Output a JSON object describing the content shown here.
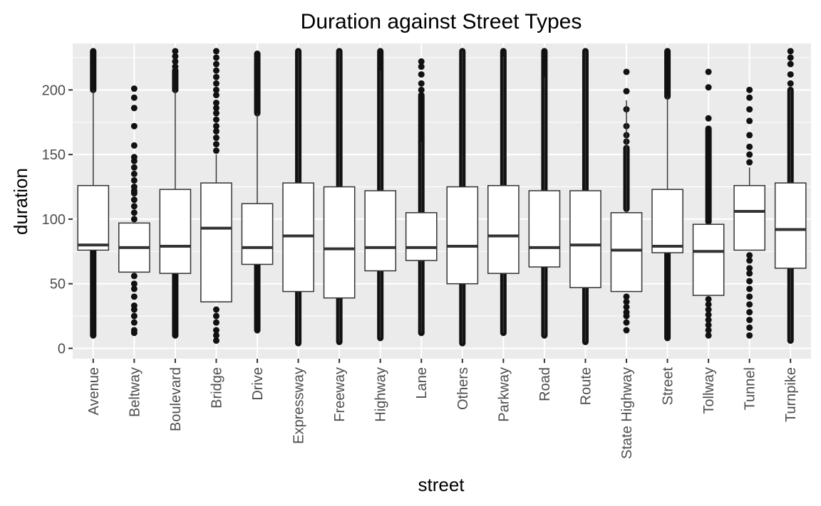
{
  "chart_data": {
    "type": "boxplot",
    "title": "Duration against Street Types",
    "xlabel": "street",
    "ylabel": "duration",
    "ylim": [
      -8,
      236
    ],
    "yticks": [
      0,
      50,
      100,
      150,
      200
    ],
    "grid": true,
    "legend": "none",
    "colors": {
      "panel": "#ebebeb",
      "grid": "#ffffff",
      "box_fill": "#ffffff",
      "box_line": "#333333",
      "outlier": "#111111",
      "tick_label": "#4d4d4d"
    },
    "categories": [
      "Avenue",
      "Beltway",
      "Boulevard",
      "Bridge",
      "Drive",
      "Expressway",
      "Freeway",
      "Highway",
      "Lane",
      "Others",
      "Parkway",
      "Road",
      "Route",
      "State Highway",
      "Street",
      "Tollway",
      "Tunnel",
      "Turnpike"
    ],
    "boxes": [
      {
        "category": "Avenue",
        "whisker_low": 76,
        "q1": 76,
        "median": 80,
        "q3": 126,
        "whisker_high": 200,
        "outliers_dense": [
          [
            10,
            76
          ],
          [
            200,
            230
          ]
        ],
        "outliers": []
      },
      {
        "category": "Beltway",
        "whisker_low": 59,
        "q1": 59,
        "median": 78,
        "q3": 97,
        "whisker_high": 97,
        "outliers_dense": [],
        "outliers": [
          12,
          14,
          20,
          25,
          30,
          33,
          40,
          46,
          50,
          56,
          100,
          105,
          110,
          115,
          120,
          122,
          125,
          130,
          135,
          140,
          145,
          148,
          157,
          172,
          186,
          194,
          201
        ]
      },
      {
        "category": "Boulevard",
        "whisker_low": 58,
        "q1": 58,
        "median": 79,
        "q3": 123,
        "whisker_high": 200,
        "outliers_dense": [
          [
            10,
            58
          ],
          [
            200,
            215
          ]
        ],
        "outliers": [
          218,
          222,
          226,
          230
        ]
      },
      {
        "category": "Bridge",
        "whisker_low": 36,
        "q1": 36,
        "median": 93,
        "q3": 128,
        "whisker_high": 150,
        "outliers_dense": [],
        "outliers": [
          6,
          10,
          14,
          20,
          25,
          30,
          153,
          158,
          163,
          168,
          172,
          177,
          182,
          186,
          190,
          196,
          200,
          205,
          210,
          215,
          220,
          225,
          230
        ]
      },
      {
        "category": "Drive",
        "whisker_low": 65,
        "q1": 65,
        "median": 78,
        "q3": 112,
        "whisker_high": 182,
        "outliers_dense": [
          [
            14,
            65
          ],
          [
            182,
            228
          ]
        ],
        "outliers": []
      },
      {
        "category": "Expressway",
        "whisker_low": 4,
        "q1": 44,
        "median": 87,
        "q3": 128,
        "whisker_high": 230,
        "outliers_dense": [
          [
            4,
            44
          ],
          [
            128,
            230
          ]
        ],
        "outliers": []
      },
      {
        "category": "Freeway",
        "whisker_low": 5,
        "q1": 39,
        "median": 77,
        "q3": 125,
        "whisker_high": 230,
        "outliers_dense": [
          [
            5,
            39
          ],
          [
            125,
            230
          ]
        ],
        "outliers": []
      },
      {
        "category": "Highway",
        "whisker_low": 8,
        "q1": 60,
        "median": 78,
        "q3": 122,
        "whisker_high": 215,
        "outliers_dense": [
          [
            8,
            60
          ],
          [
            122,
            230
          ]
        ],
        "outliers": []
      },
      {
        "category": "Lane",
        "whisker_low": 12,
        "q1": 68,
        "median": 78,
        "q3": 105,
        "whisker_high": 160,
        "outliers_dense": [
          [
            12,
            68
          ],
          [
            105,
            160
          ],
          [
            160,
            196
          ]
        ],
        "outliers": [
          12,
          16,
          200,
          205,
          212,
          218,
          222
        ]
      },
      {
        "category": "Others",
        "whisker_low": 4,
        "q1": 50,
        "median": 79,
        "q3": 125,
        "whisker_high": 230,
        "outliers_dense": [
          [
            4,
            50
          ],
          [
            125,
            230
          ]
        ],
        "outliers": []
      },
      {
        "category": "Parkway",
        "whisker_low": 12,
        "q1": 58,
        "median": 87,
        "q3": 126,
        "whisker_high": 226,
        "outliers_dense": [
          [
            12,
            58
          ],
          [
            126,
            230
          ]
        ],
        "outliers": []
      },
      {
        "category": "Road",
        "whisker_low": 10,
        "q1": 63,
        "median": 78,
        "q3": 122,
        "whisker_high": 210,
        "outliers_dense": [
          [
            10,
            63
          ],
          [
            122,
            230
          ]
        ],
        "outliers": []
      },
      {
        "category": "Route",
        "whisker_low": 5,
        "q1": 47,
        "median": 80,
        "q3": 122,
        "whisker_high": 230,
        "outliers_dense": [
          [
            5,
            47
          ],
          [
            122,
            230
          ]
        ],
        "outliers": []
      },
      {
        "category": "State Highway",
        "whisker_low": 44,
        "q1": 44,
        "median": 76,
        "q3": 105,
        "whisker_high": 192,
        "outliers_dense": [
          [
            108,
            155
          ]
        ],
        "outliers": [
          14,
          20,
          25,
          28,
          32,
          36,
          40,
          160,
          165,
          172,
          185,
          199,
          214
        ]
      },
      {
        "category": "Street",
        "whisker_low": 74,
        "q1": 74,
        "median": 79,
        "q3": 123,
        "whisker_high": 195,
        "outliers_dense": [
          [
            8,
            74
          ],
          [
            195,
            230
          ]
        ],
        "outliers": []
      },
      {
        "category": "Tollway",
        "whisker_low": 41,
        "q1": 41,
        "median": 75,
        "q3": 96,
        "whisker_high": 96,
        "outliers_dense": [
          [
            98,
            170
          ]
        ],
        "outliers": [
          10,
          14,
          18,
          22,
          26,
          30,
          34,
          38,
          178,
          202,
          214
        ]
      },
      {
        "category": "Tunnel",
        "whisker_low": 76,
        "q1": 76,
        "median": 106,
        "q3": 126,
        "whisker_high": 140,
        "outliers_dense": [],
        "outliers": [
          10,
          16,
          22,
          28,
          34,
          40,
          46,
          52,
          58,
          62,
          68,
          72,
          144,
          150,
          156,
          165,
          176,
          185,
          194,
          200
        ]
      },
      {
        "category": "Turnpike",
        "whisker_low": 6,
        "q1": 62,
        "median": 92,
        "q3": 128,
        "whisker_high": 200,
        "outliers_dense": [
          [
            6,
            62
          ],
          [
            128,
            200
          ]
        ],
        "outliers": [
          205,
          212,
          220,
          225,
          230
        ]
      }
    ]
  }
}
